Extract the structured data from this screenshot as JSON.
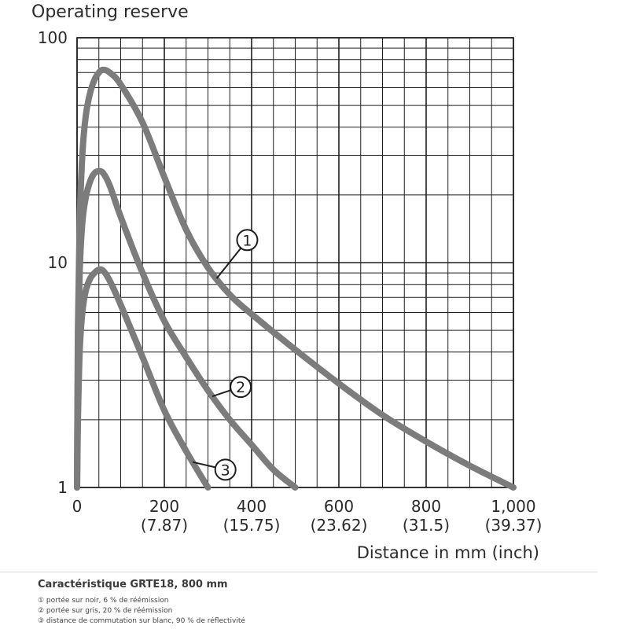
{
  "chart_data": {
    "type": "line",
    "ylabel": "Operating reserve",
    "xlabel": "Distance in mm (inch)",
    "yscale": "log",
    "ylim": [
      1,
      100
    ],
    "xlim": [
      0,
      1000
    ],
    "y_ticks": [
      "1",
      "10",
      "100"
    ],
    "x_ticks": [
      {
        "value": 0,
        "label": "0",
        "sublabel": ""
      },
      {
        "value": 200,
        "label": "200",
        "sublabel": "(7.87)"
      },
      {
        "value": 400,
        "label": "400",
        "sublabel": "(15.75)"
      },
      {
        "value": 600,
        "label": "600",
        "sublabel": "(23.62)"
      },
      {
        "value": 800,
        "label": "800",
        "sublabel": "(31.5)"
      },
      {
        "value": 1000,
        "label": "1,000",
        "sublabel": "(39.37)"
      }
    ],
    "grid": true,
    "series": [
      {
        "name": "1",
        "x": [
          0,
          2,
          6,
          12,
          20,
          30,
          40,
          50,
          60,
          75,
          100,
          150,
          200,
          250,
          300,
          350,
          400,
          500,
          600,
          700,
          800,
          900,
          1000
        ],
        "y": [
          1,
          5,
          15,
          30,
          45,
          57,
          65,
          70,
          72,
          70,
          62,
          42,
          24,
          14,
          9.5,
          7.2,
          5.9,
          4.1,
          2.9,
          2.1,
          1.6,
          1.25,
          1
        ]
      },
      {
        "name": "2",
        "x": [
          0,
          2,
          6,
          12,
          20,
          30,
          40,
          50,
          60,
          75,
          100,
          150,
          200,
          250,
          300,
          350,
          400,
          450,
          500
        ],
        "y": [
          1,
          3.5,
          9,
          15,
          19.5,
          23,
          25,
          25.5,
          25,
          22,
          16,
          9,
          5.5,
          3.8,
          2.7,
          2.0,
          1.55,
          1.2,
          1
        ]
      },
      {
        "name": "3",
        "x": [
          0,
          2,
          6,
          12,
          20,
          30,
          40,
          50,
          60,
          75,
          100,
          150,
          200,
          250,
          300
        ],
        "y": [
          1,
          2,
          4,
          6,
          7.5,
          8.5,
          9,
          9.3,
          9.2,
          8.3,
          6.5,
          3.8,
          2.2,
          1.45,
          1
        ]
      }
    ],
    "markers": [
      {
        "series": "1",
        "label": "1",
        "at_x": 320,
        "label_at_x": 390,
        "label_at_y": 12.6
      },
      {
        "series": "2",
        "label": "2",
        "at_x": 310,
        "label_at_x": 375,
        "label_at_y": 2.8
      },
      {
        "series": "3",
        "label": "3",
        "at_x": 265,
        "label_at_x": 340,
        "label_at_y": 1.2
      }
    ]
  },
  "caption": {
    "title": "Caractéristique GRTE18, 800 mm",
    "notes": [
      "① portée sur noir, 6 % de réémission",
      "② portée sur gris, 20 % de réémission",
      "③ distance de commutation sur blanc, 90 % de réflectivité"
    ]
  },
  "colors": {
    "curve": "#7c7c7c",
    "grid": "#1e1e1e",
    "text": "#2b2b2b"
  }
}
